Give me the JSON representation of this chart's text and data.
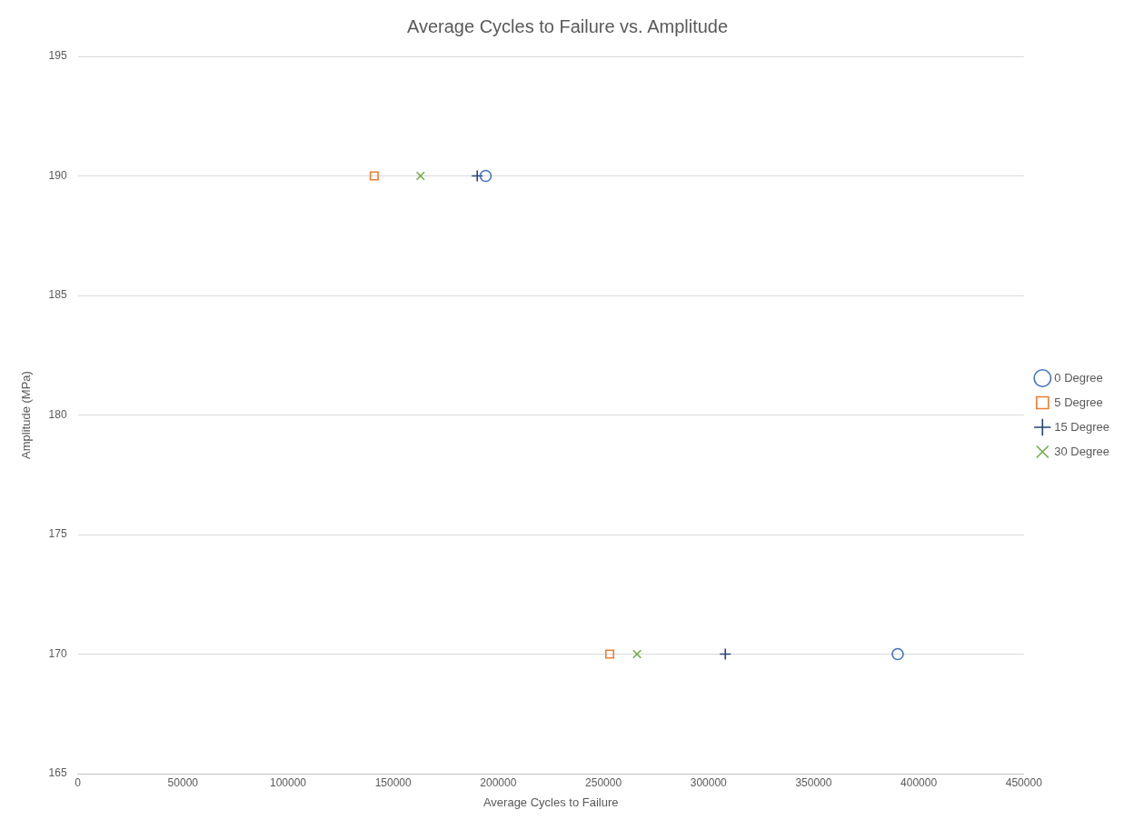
{
  "chart_data": {
    "type": "scatter",
    "title": "Average Cycles to Failure vs. Amplitude",
    "xlabel": "Average Cycles to Failure",
    "ylabel": "Amplitude (MPa)",
    "xlim": [
      0,
      450000
    ],
    "xticks": [
      0,
      50000,
      100000,
      150000,
      200000,
      250000,
      300000,
      350000,
      400000,
      450000
    ],
    "ylim": [
      165,
      195
    ],
    "yticks": [
      165,
      170,
      175,
      180,
      185,
      190,
      195
    ],
    "grid": "y",
    "legend": "right",
    "series": [
      {
        "name": "0 Degree",
        "color": "#4472c4",
        "marker": "circle",
        "x": [
          194000,
          390000
        ],
        "values": [
          190,
          170
        ]
      },
      {
        "name": "5 Degree",
        "color": "#ed7d31",
        "marker": "square",
        "x": [
          141000,
          253000
        ],
        "values": [
          190,
          170
        ]
      },
      {
        "name": "15 Degree",
        "color": "#264478",
        "marker": "cross",
        "x": [
          190000,
          308000
        ],
        "values": [
          190,
          170
        ]
      },
      {
        "name": "30 Degree",
        "color": "#70ad47",
        "marker": "x",
        "x": [
          163000,
          266000
        ],
        "values": [
          190,
          170
        ]
      }
    ]
  }
}
